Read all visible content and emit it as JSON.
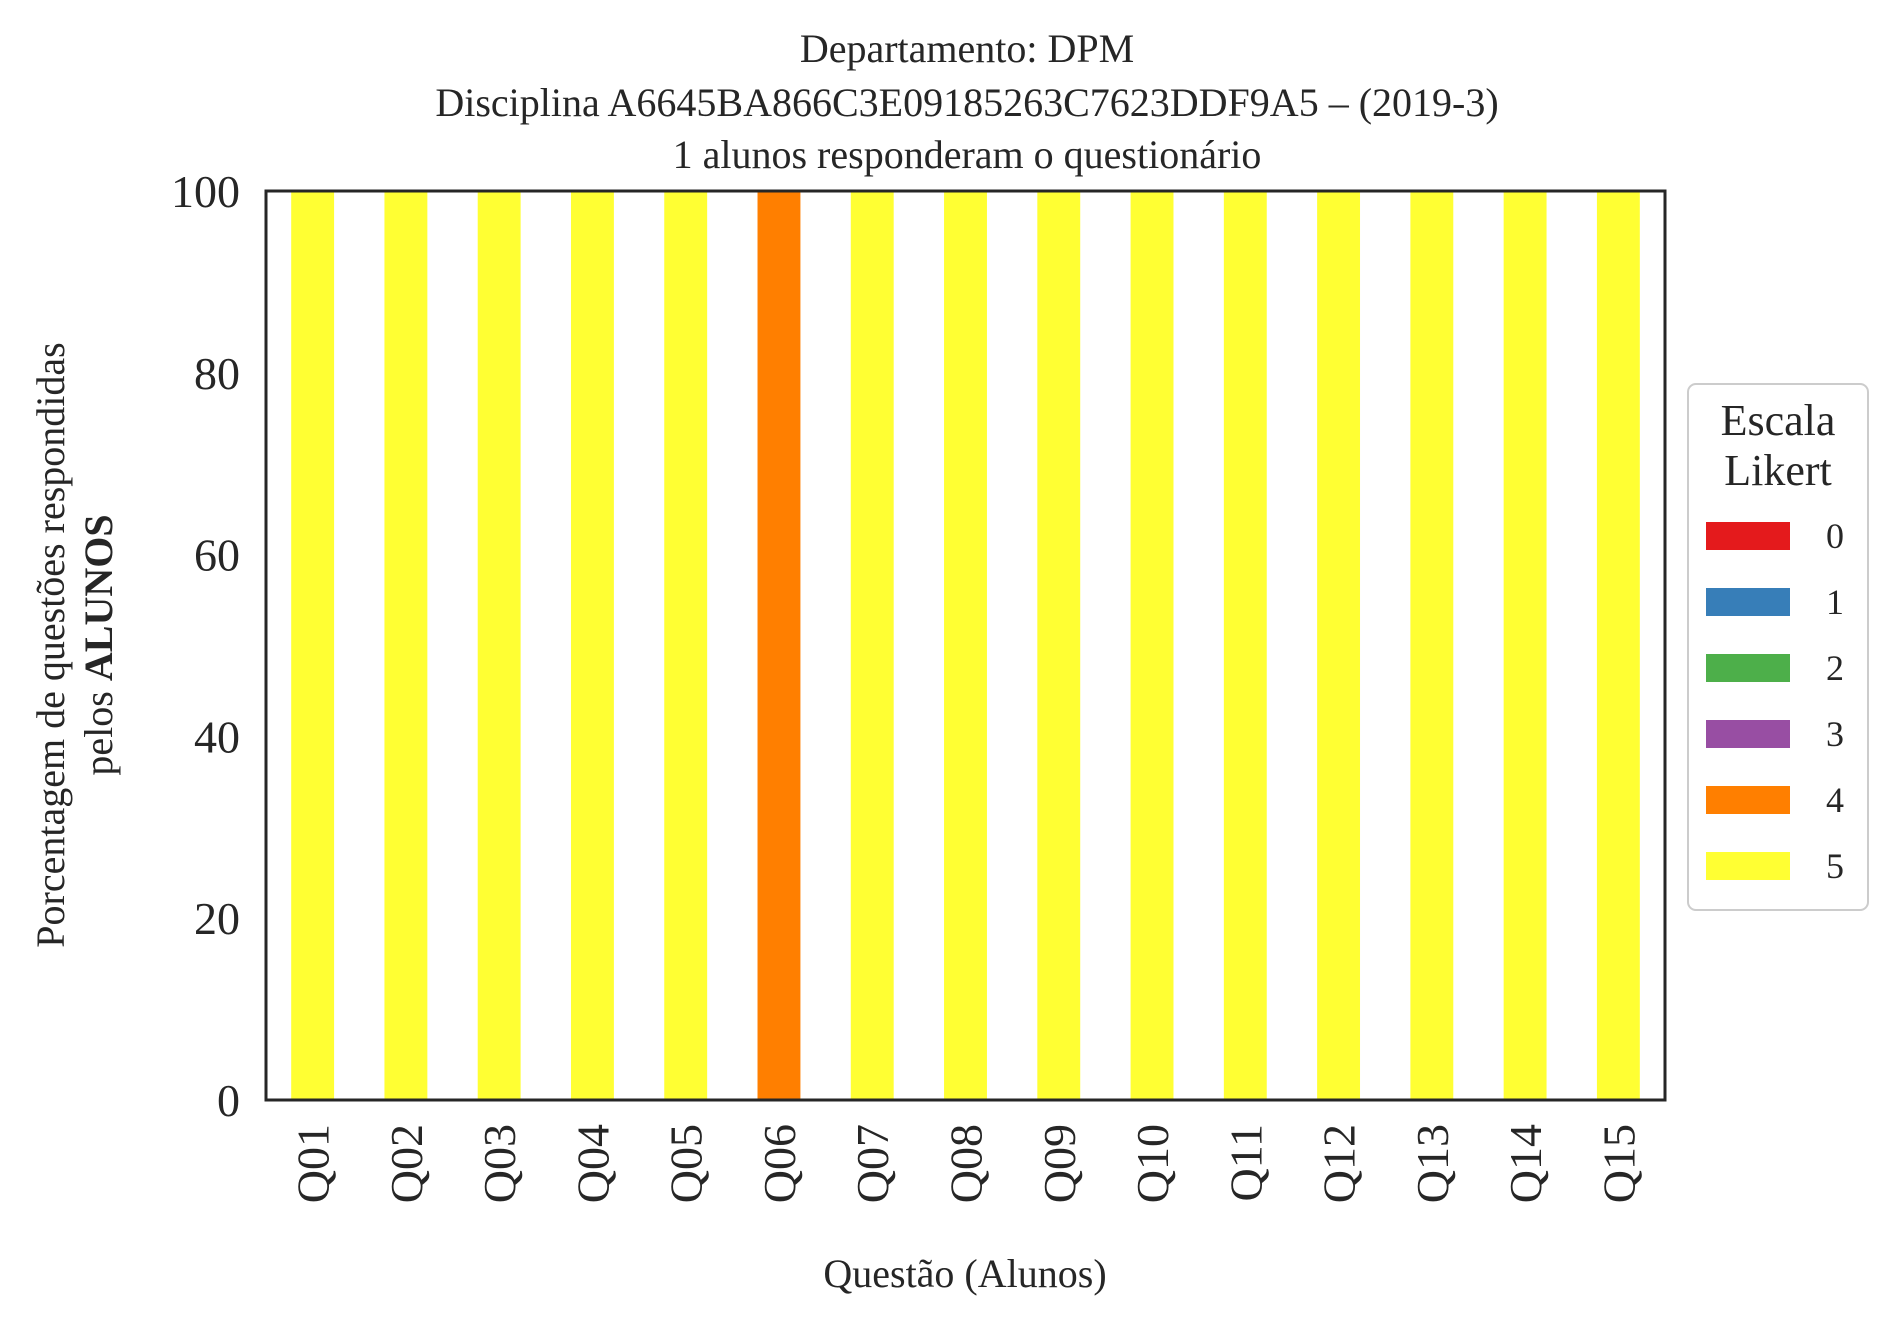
{
  "chart_data": {
    "type": "bar",
    "stacked": true,
    "title": [
      "Departamento: DPM",
      "Disciplina A6645BA866C3E09185263C7623DDF9A5 – (2019-3)",
      "1 alunos responderam o questionário"
    ],
    "xlabel": "Questão (Alunos)",
    "ylabel": {
      "line1": "Porcentagem de questões respondidas",
      "line2_prefix": "pelos ",
      "line2_bold": "ALUNOS"
    },
    "ylim": [
      0,
      100
    ],
    "yticks": [
      "0",
      "20",
      "40",
      "60",
      "80",
      "100"
    ],
    "grid": false,
    "categories": [
      "Q01",
      "Q02",
      "Q03",
      "Q04",
      "Q05",
      "Q06",
      "Q07",
      "Q08",
      "Q09",
      "Q10",
      "Q11",
      "Q12",
      "Q13",
      "Q14",
      "Q15"
    ],
    "series": [
      {
        "name": "0",
        "color": "#e41a1c",
        "values": [
          0,
          0,
          0,
          0,
          0,
          0,
          0,
          0,
          0,
          0,
          0,
          0,
          0,
          0,
          0
        ]
      },
      {
        "name": "1",
        "color": "#377eb8",
        "values": [
          0,
          0,
          0,
          0,
          0,
          0,
          0,
          0,
          0,
          0,
          0,
          0,
          0,
          0,
          0
        ]
      },
      {
        "name": "2",
        "color": "#4daf4a",
        "values": [
          0,
          0,
          0,
          0,
          0,
          0,
          0,
          0,
          0,
          0,
          0,
          0,
          0,
          0,
          0
        ]
      },
      {
        "name": "3",
        "color": "#984ea3",
        "values": [
          0,
          0,
          0,
          0,
          0,
          0,
          0,
          0,
          0,
          0,
          0,
          0,
          0,
          0,
          0
        ]
      },
      {
        "name": "4",
        "color": "#ff7f00",
        "values": [
          0,
          0,
          0,
          0,
          0,
          100,
          0,
          0,
          0,
          0,
          0,
          0,
          0,
          0,
          0
        ]
      },
      {
        "name": "5",
        "color": "#ffff33",
        "values": [
          100,
          100,
          100,
          100,
          100,
          0,
          100,
          100,
          100,
          100,
          100,
          100,
          100,
          100,
          100
        ]
      }
    ],
    "legend": {
      "title": [
        "Escala",
        "Likert"
      ],
      "placement": "right"
    }
  }
}
